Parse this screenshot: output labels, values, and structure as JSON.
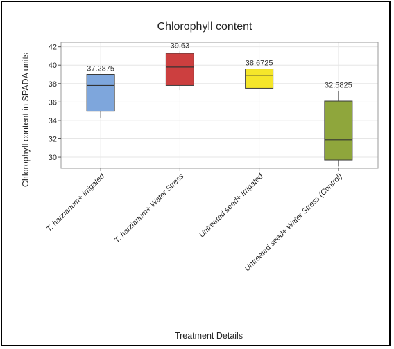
{
  "chart_data": {
    "type": "box",
    "title": "Chlorophyll content",
    "xlabel": "Treatment Details",
    "ylabel": "Chlorophyll content in SPADA units",
    "ylim": [
      28.8,
      42.5
    ],
    "yticks": [
      30,
      32,
      34,
      36,
      38,
      40,
      42
    ],
    "grid": true,
    "categories": [
      "T. harzianum+ Irrigated",
      "T. harzianum+ Water Stress",
      "Untreated seed+ Irrigated",
      "Untreated seed+ Water Stress (Control)"
    ],
    "boxes": [
      {
        "whisker_low": 34.3,
        "q1": 35.0,
        "median": 37.8,
        "q3": 39.0,
        "whisker_high": 39.0,
        "mean_label": "37.2875",
        "color": "#7ea6dc"
      },
      {
        "whisker_low": 37.3,
        "q1": 37.8,
        "median": 39.8,
        "q3": 41.3,
        "whisker_high": 41.5,
        "mean_label": "39.63",
        "color": "#cc3f3f"
      },
      {
        "whisker_low": 37.5,
        "q1": 37.5,
        "median": 38.9,
        "q3": 39.6,
        "whisker_high": 39.6,
        "mean_label": "38.6725",
        "color": "#f5e62a"
      },
      {
        "whisker_low": 29.0,
        "q1": 29.7,
        "median": 31.9,
        "q3": 36.1,
        "whisker_high": 37.2,
        "mean_label": "32.5825",
        "color": "#8fa63c"
      }
    ]
  }
}
